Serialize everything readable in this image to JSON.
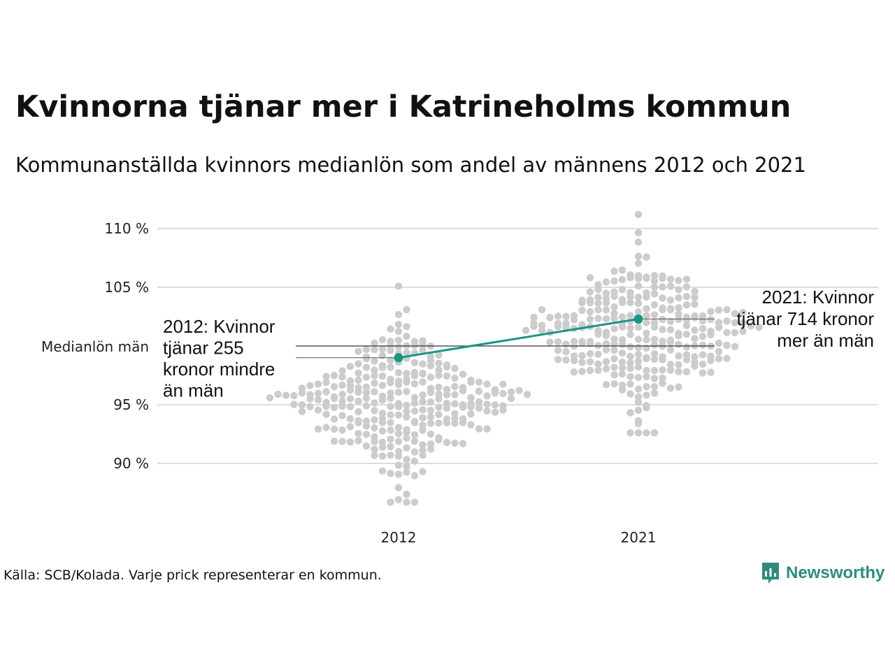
{
  "title": "Kvinnorna tjänar mer i Katrineholms kommun",
  "subtitle": "Kommunanställda kvinnors medianlön som andel av männens 2012 och 2021",
  "source": "Källa: SCB/Kolada. Varje prick representerar en kommun.",
  "brand": {
    "name": "Newsworthy",
    "logo_icon": "newsworthy-logo-icon",
    "color": "#2e8b7e"
  },
  "chart_data": {
    "type": "scatter",
    "style": "beeswarm",
    "title": "Kvinnorna tjänar mer i Katrineholms kommun",
    "subtitle": "Kommunanställda kvinnors medianlön som andel av männens 2012 och 2021",
    "xlabel": "",
    "ylabel": "",
    "categories": [
      "2012",
      "2021"
    ],
    "ylim": [
      86.5,
      111
    ],
    "yticks": [
      90,
      95,
      105,
      110
    ],
    "ytick_labels": [
      "90 %",
      "95 %",
      "105 %",
      "110 %"
    ],
    "grid": true,
    "reference_line": {
      "value": 100,
      "label": "Medianlön män"
    },
    "colors": {
      "dots": "#cccccc",
      "highlight": "#1a9585",
      "grid": "#dddddd",
      "reference": "#333333"
    },
    "highlight_series": {
      "values": [
        99.0,
        102.3
      ]
    },
    "annotations": [
      {
        "category": "2012",
        "lines": [
          "2012: Kvinnor",
          "tjänar 255",
          "kronor mindre",
          "än män"
        ],
        "side": "left"
      },
      {
        "category": "2021",
        "lines": [
          "2021: Kvinnor",
          "tjänar 714 kronor",
          "mer än män"
        ],
        "side": "right"
      }
    ],
    "distributions": [
      {
        "category": "2012",
        "count": 290,
        "median": 95.4,
        "min": 86.7,
        "max": 105.1
      },
      {
        "category": "2021",
        "count": 290,
        "median": 101.2,
        "min": 92.6,
        "max": 111.2
      }
    ]
  }
}
